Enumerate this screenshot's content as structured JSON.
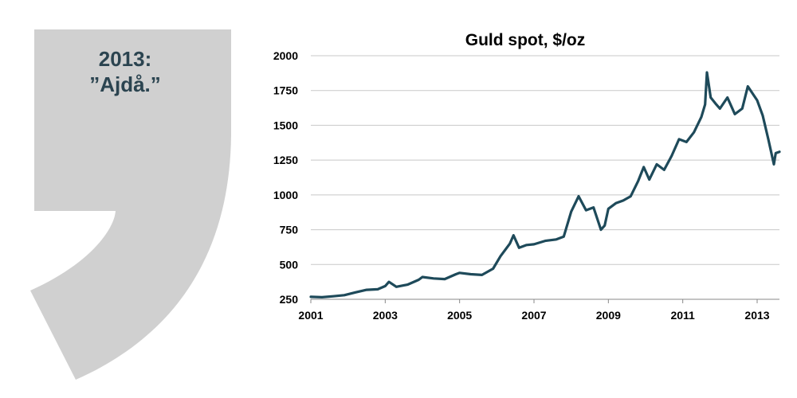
{
  "quote": {
    "line1": "2013:",
    "line2": "”Ajdå.”",
    "shape_color": "#d0d0d0",
    "text_color": "#2b4450"
  },
  "chart_data": {
    "type": "line",
    "title": "Guld spot, $/oz",
    "xlabel": "",
    "ylabel": "",
    "xlim": [
      2001,
      2013.6
    ],
    "ylim": [
      250,
      2000
    ],
    "x_ticks": [
      "2001",
      "2003",
      "2005",
      "2007",
      "2009",
      "2011",
      "2013"
    ],
    "y_ticks": [
      "250",
      "500",
      "750",
      "1000",
      "1250",
      "1500",
      "1750",
      "2000"
    ],
    "grid": "horizontal",
    "legend": "none",
    "line_color": "#1e4a5a",
    "series": [
      {
        "x": [
          2001.0,
          2001.3,
          2001.6,
          2001.9,
          2002.2,
          2002.5,
          2002.8,
          2003.0,
          2003.1,
          2003.3,
          2003.6,
          2003.9,
          2004.0,
          2004.3,
          2004.6,
          2004.9,
          2005.0,
          2005.3,
          2005.6,
          2005.9,
          2006.1,
          2006.35,
          2006.45,
          2006.6,
          2006.8,
          2007.0,
          2007.3,
          2007.6,
          2007.8,
          2008.0,
          2008.2,
          2008.4,
          2008.6,
          2008.8,
          2008.9,
          2009.0,
          2009.2,
          2009.4,
          2009.6,
          2009.8,
          2009.95,
          2010.1,
          2010.3,
          2010.5,
          2010.7,
          2010.9,
          2011.1,
          2011.3,
          2011.5,
          2011.6,
          2011.65,
          2011.75,
          2011.9,
          2012.0,
          2012.2,
          2012.4,
          2012.6,
          2012.75,
          2012.9,
          2013.0,
          2013.15,
          2013.3,
          2013.45,
          2013.5,
          2013.6
        ],
        "y": [
          268,
          265,
          272,
          280,
          300,
          318,
          322,
          345,
          375,
          340,
          355,
          390,
          410,
          400,
          395,
          430,
          440,
          430,
          425,
          470,
          560,
          650,
          710,
          620,
          640,
          645,
          670,
          680,
          700,
          880,
          990,
          890,
          910,
          750,
          780,
          900,
          940,
          960,
          990,
          1100,
          1200,
          1110,
          1220,
          1180,
          1280,
          1400,
          1380,
          1450,
          1560,
          1650,
          1880,
          1700,
          1650,
          1620,
          1700,
          1580,
          1620,
          1780,
          1720,
          1680,
          1570,
          1400,
          1220,
          1300,
          1310
        ]
      }
    ]
  }
}
